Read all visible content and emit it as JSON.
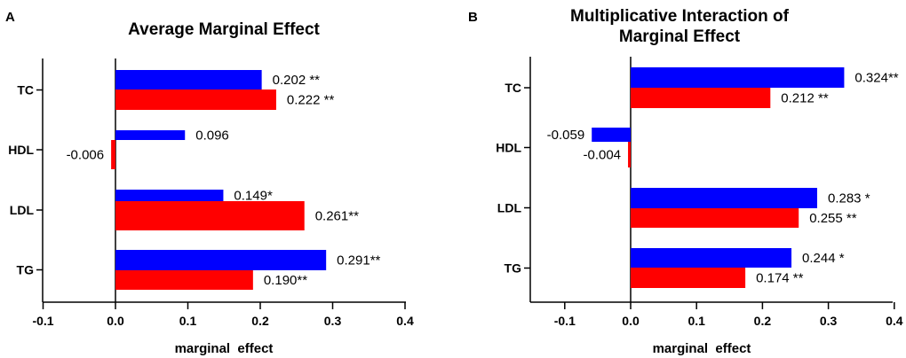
{
  "chart_data": [
    {
      "panel_label": "A",
      "type": "bar",
      "orientation": "horizontal",
      "title": "Average Marginal Effect",
      "xlabel": "marginal  effect",
      "ylabel": "",
      "xlim": [
        -0.1,
        0.4
      ],
      "xticks": [
        "-0.1",
        "0.0",
        "0.1",
        "0.2",
        "0.3",
        "0.4"
      ],
      "grid": false,
      "categories": [
        "TC",
        "HDL",
        "LDL",
        "TG"
      ],
      "series": [
        {
          "name": "blue",
          "color": "#0000ff",
          "values": [
            0.202,
            0.096,
            0.149,
            0.291
          ],
          "labels": [
            "0.202 **",
            "0.096",
            "0.149*",
            "0.291**"
          ]
        },
        {
          "name": "red",
          "color": "#ff0000",
          "values": [
            0.222,
            -0.006,
            0.261,
            0.19
          ],
          "labels": [
            "0.222 **",
            "-0.006",
            "0.261**",
            "0.190**"
          ]
        }
      ]
    },
    {
      "panel_label": "B",
      "type": "bar",
      "orientation": "horizontal",
      "title": "Multiplicative Interaction of Marginal Effect",
      "title_lines": [
        "Multiplicative Interaction of",
        "Marginal Effect"
      ],
      "xlabel": "marginal  effect",
      "ylabel": "",
      "xlim": [
        -0.15,
        0.4
      ],
      "xticks": [
        "-0.1",
        "0.0",
        "0.1",
        "0.2",
        "0.3",
        "0.4"
      ],
      "grid": false,
      "categories": [
        "TC",
        "HDL",
        "LDL",
        "TG"
      ],
      "series": [
        {
          "name": "blue",
          "color": "#0000ff",
          "values": [
            0.324,
            -0.059,
            0.283,
            0.244
          ],
          "labels": [
            "0.324**",
            "-0.059",
            "0.283 *",
            "0.244 *"
          ]
        },
        {
          "name": "red",
          "color": "#ff0000",
          "values": [
            0.212,
            -0.004,
            0.255,
            0.174
          ],
          "labels": [
            "0.212 **",
            "-0.004",
            "0.255 **",
            "0.174 **"
          ]
        }
      ]
    }
  ]
}
